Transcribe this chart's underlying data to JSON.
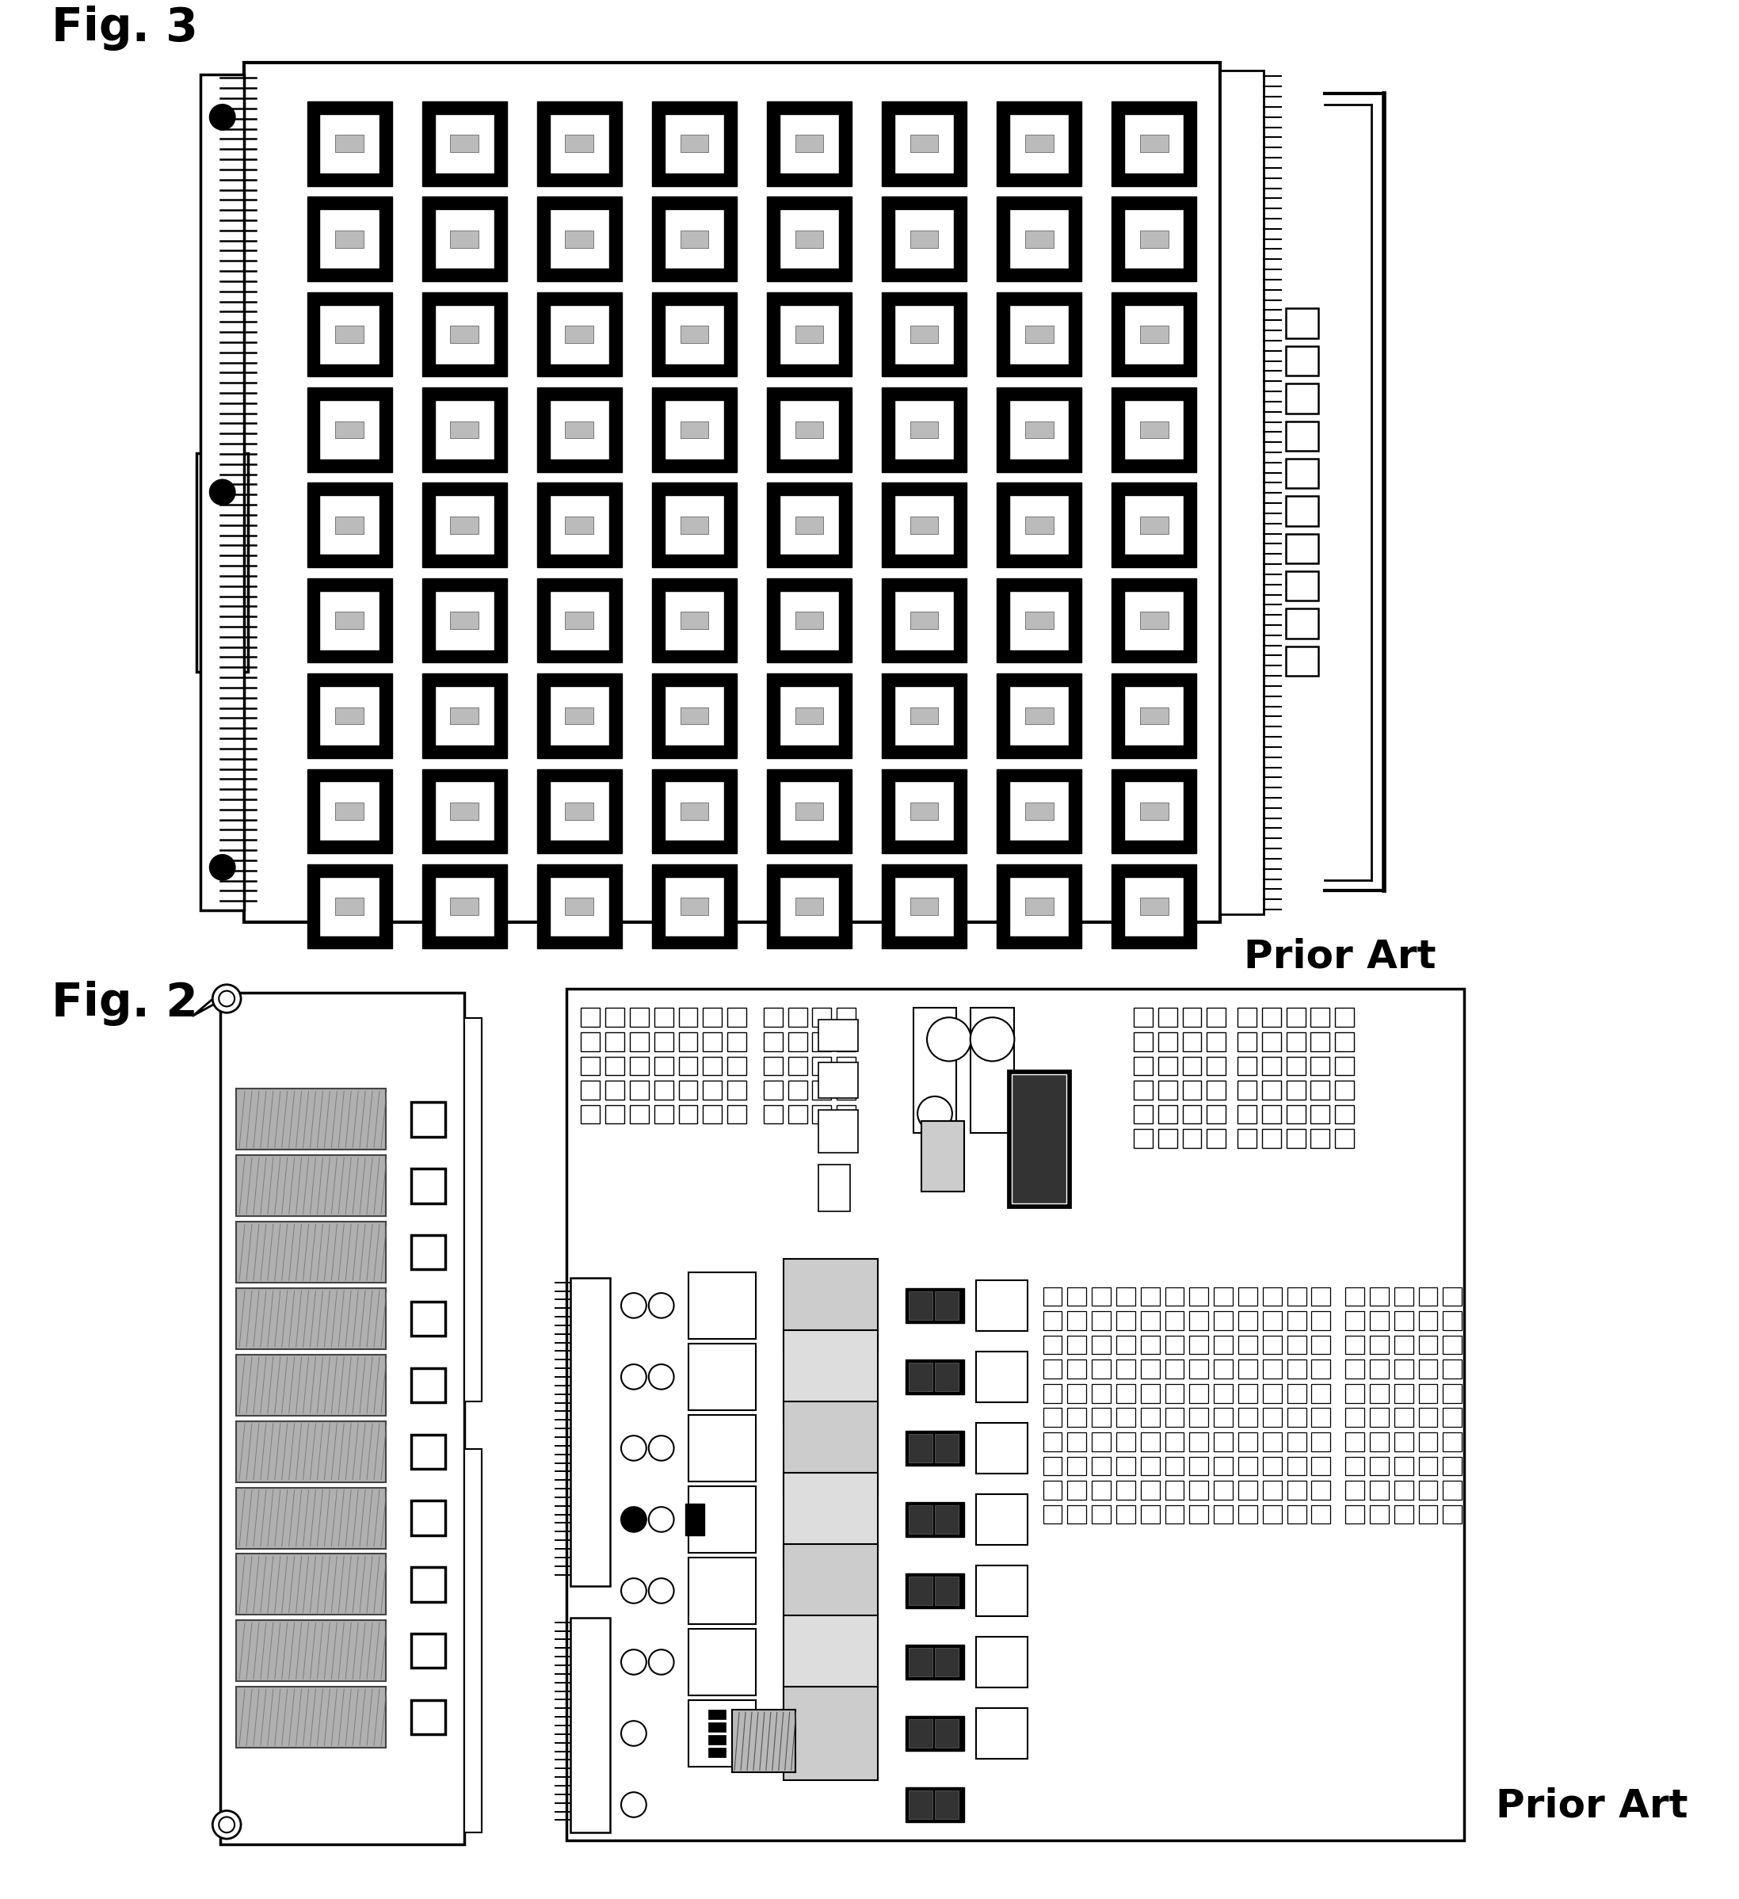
{
  "fig3_label": "Fig. 3",
  "fig2_label": "Fig. 2",
  "prior_art": "Prior Art",
  "bg_color": "#ffffff",
  "fig3_rows": 9,
  "fig3_cols": 8,
  "fig2_slots": 10
}
